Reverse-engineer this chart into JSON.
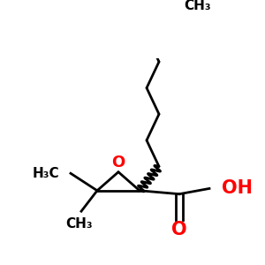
{
  "background_color": "#ffffff",
  "line_color": "#000000",
  "red_color": "#ff0000",
  "line_width": 2.0,
  "font_size_label": 13,
  "font_size_small": 11,
  "epoxide_O_label": "O",
  "oh_label": "OH",
  "o_label": "O",
  "h3c_left_label": "H₃C",
  "ch3_bottom_label": "CH₃",
  "ch3_top_label": "CH₃"
}
